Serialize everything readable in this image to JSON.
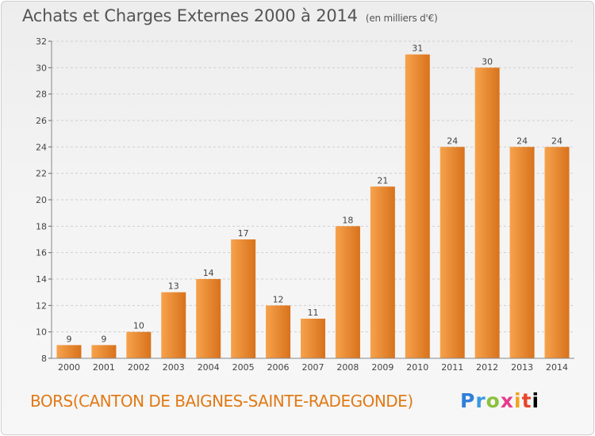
{
  "chart_data": {
    "type": "bar",
    "title": "Achats et Charges Externes 2000 à 2014",
    "unit_label": "(en milliers d'€)",
    "categories": [
      "2000",
      "2001",
      "2002",
      "2003",
      "2004",
      "2005",
      "2006",
      "2007",
      "2008",
      "2009",
      "2010",
      "2011",
      "2012",
      "2013",
      "2014"
    ],
    "values": [
      9,
      9,
      10,
      13,
      14,
      17,
      12,
      11,
      18,
      21,
      31,
      24,
      30,
      24,
      24
    ],
    "value_labels": [
      "9",
      "9",
      "10",
      "13",
      "14",
      "17",
      "12",
      "11",
      "18",
      "21",
      "31",
      "24",
      "30",
      "24",
      "24"
    ],
    "ylim": [
      8,
      32
    ],
    "yticks": [
      8,
      10,
      12,
      14,
      16,
      18,
      20,
      22,
      24,
      26,
      28,
      30,
      32
    ],
    "ytick_labels": [
      "8",
      "10",
      "12",
      "14",
      "16",
      "18",
      "20",
      "22",
      "24",
      "26",
      "28",
      "30",
      "32"
    ],
    "grid": "dashed horizontal",
    "xlabel": "",
    "ylabel": "",
    "colors": {
      "bar_light": "#f7a24c",
      "bar_dark": "#d8721c",
      "text": "#444444"
    }
  },
  "footer": {
    "location": "BORS(CANTON DE BAIGNES-SAINTE-RADEGONDE)",
    "logo_letters": [
      "P",
      "r",
      "o",
      "x",
      "i",
      "t",
      "i"
    ]
  }
}
